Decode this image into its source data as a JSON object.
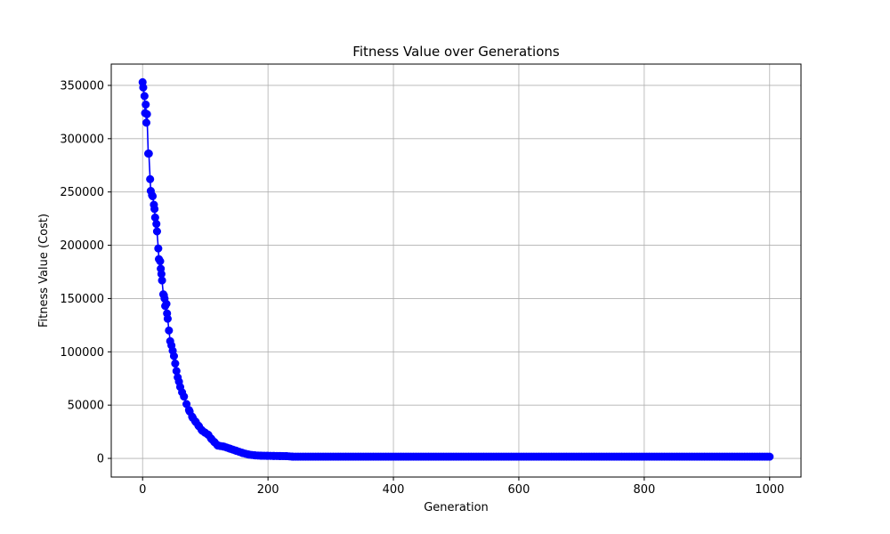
{
  "chart_data": {
    "type": "line",
    "title": "Fitness Value over Generations",
    "xlabel": "Generation",
    "ylabel": "Fitness Value (Cost)",
    "xlim": [
      -50,
      1050
    ],
    "ylim": [
      -17500,
      370000
    ],
    "xticks": [
      0,
      200,
      400,
      600,
      800,
      1000
    ],
    "xtick_labels": [
      "0",
      "200",
      "400",
      "600",
      "800",
      "1000"
    ],
    "yticks": [
      0,
      50000,
      100000,
      150000,
      200000,
      250000,
      300000,
      350000
    ],
    "ytick_labels": [
      "0",
      "50000",
      "100000",
      "150000",
      "200000",
      "250000",
      "300000",
      "350000"
    ],
    "grid": true,
    "marker": "circle",
    "series": [
      {
        "color": "#0000ff",
        "x": [
          0,
          1,
          3,
          4,
          5,
          6,
          7,
          9,
          10,
          12,
          13,
          15,
          16,
          18,
          19,
          20,
          22,
          23,
          25,
          26,
          28,
          29,
          30,
          31,
          33,
          34,
          35,
          36,
          38,
          39,
          40,
          42,
          44,
          46,
          48,
          50,
          52,
          54,
          56,
          58,
          60,
          63,
          66,
          70,
          75,
          80,
          85,
          90,
          95,
          100,
          105,
          110,
          115,
          120,
          130,
          140,
          150,
          160,
          170,
          180,
          190,
          200,
          210,
          220,
          230,
          240,
          300,
          400,
          500,
          600,
          700,
          800,
          900,
          1000
        ],
        "y": [
          353000,
          348000,
          340000,
          324000,
          332000,
          315000,
          323000,
          286000,
          286000,
          262000,
          251000,
          247000,
          246000,
          238000,
          234000,
          226000,
          220000,
          213000,
          197000,
          187000,
          185000,
          178000,
          173000,
          167000,
          154000,
          153000,
          150000,
          143000,
          145000,
          136000,
          131000,
          120000,
          110000,
          106000,
          101000,
          96000,
          89000,
          82000,
          76000,
          72000,
          67000,
          62000,
          58000,
          51000,
          44000,
          38000,
          34000,
          30000,
          26000,
          24000,
          22000,
          18000,
          15000,
          12000,
          11000,
          9000,
          7000,
          5000,
          3500,
          2800,
          2500,
          2400,
          2300,
          2200,
          2100,
          1600,
          1600,
          1600,
          1600,
          1600,
          1600,
          1600,
          1600,
          1600
        ]
      }
    ]
  }
}
